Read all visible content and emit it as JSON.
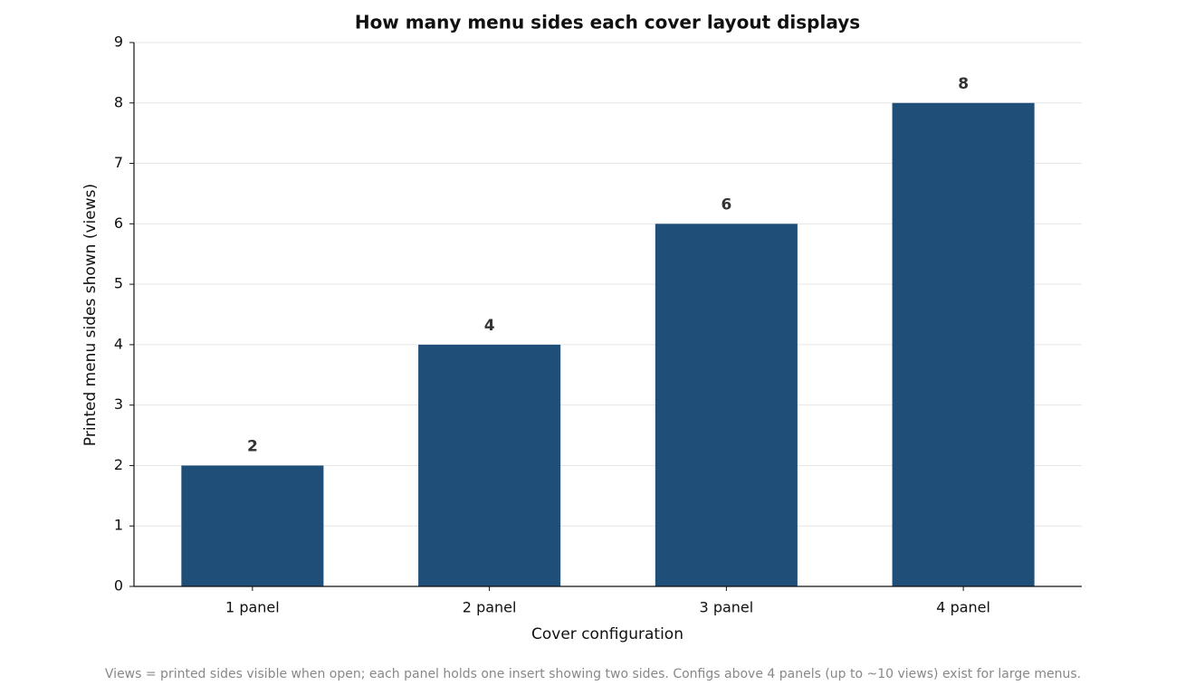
{
  "chart_data": {
    "type": "bar",
    "title": "How many menu sides each cover layout displays",
    "x_label": "Cover configuration",
    "y_label": "Printed menu sides shown (views)",
    "footnote": "Views = printed sides visible when open; each panel holds one insert showing two sides. Configs above 4 panels (up to ~10 views) exist for large menus.",
    "categories": [
      "1 panel",
      "2 panel",
      "3 panel",
      "4 panel"
    ],
    "values": [
      2,
      4,
      6,
      8
    ],
    "color": "#1f4e79",
    "ylim": [
      0,
      9
    ],
    "yticks": [
      0,
      1,
      2,
      3,
      4,
      5,
      6,
      7,
      8,
      9
    ],
    "grid": true
  }
}
